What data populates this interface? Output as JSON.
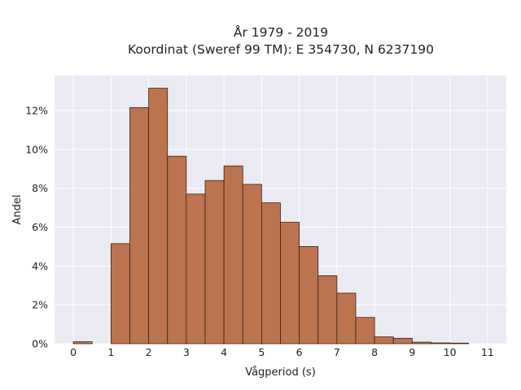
{
  "chart_data": {
    "type": "bar",
    "title": "År 1979 - 2019",
    "subtitle": "Koordinat (Sweref 99 TM): E 354730, N 6237190",
    "xlabel": "Vågperiod (s)",
    "ylabel": "Andel",
    "bin_width": 0.5,
    "bins": [
      0,
      0.5,
      1,
      1.5,
      2,
      2.5,
      3,
      3.5,
      4,
      4.5,
      5,
      5.5,
      6,
      6.5,
      7,
      7.5,
      8,
      8.5,
      9,
      9.5,
      10,
      10.5
    ],
    "values": [
      0.1,
      0.0,
      5.15,
      12.15,
      13.15,
      9.65,
      7.7,
      8.4,
      9.15,
      8.2,
      7.25,
      6.25,
      5.0,
      3.5,
      2.6,
      1.35,
      0.35,
      0.28,
      0.08,
      0.04,
      0.03,
      0.0
    ],
    "xlim": [
      -0.5,
      11.5
    ],
    "ylim": [
      0,
      13.8
    ],
    "xticks": [
      "0",
      "1",
      "2",
      "3",
      "4",
      "5",
      "6",
      "7",
      "8",
      "9",
      "10",
      "11"
    ],
    "yticks": [
      "0%",
      "2%",
      "4%",
      "6%",
      "8%",
      "10%",
      "12%"
    ],
    "grid": true,
    "colors": {
      "background": "#eaeaf2",
      "grid": "#ffffff",
      "bar_fill": "#bb7350",
      "bar_edge": "#3b2415"
    }
  }
}
